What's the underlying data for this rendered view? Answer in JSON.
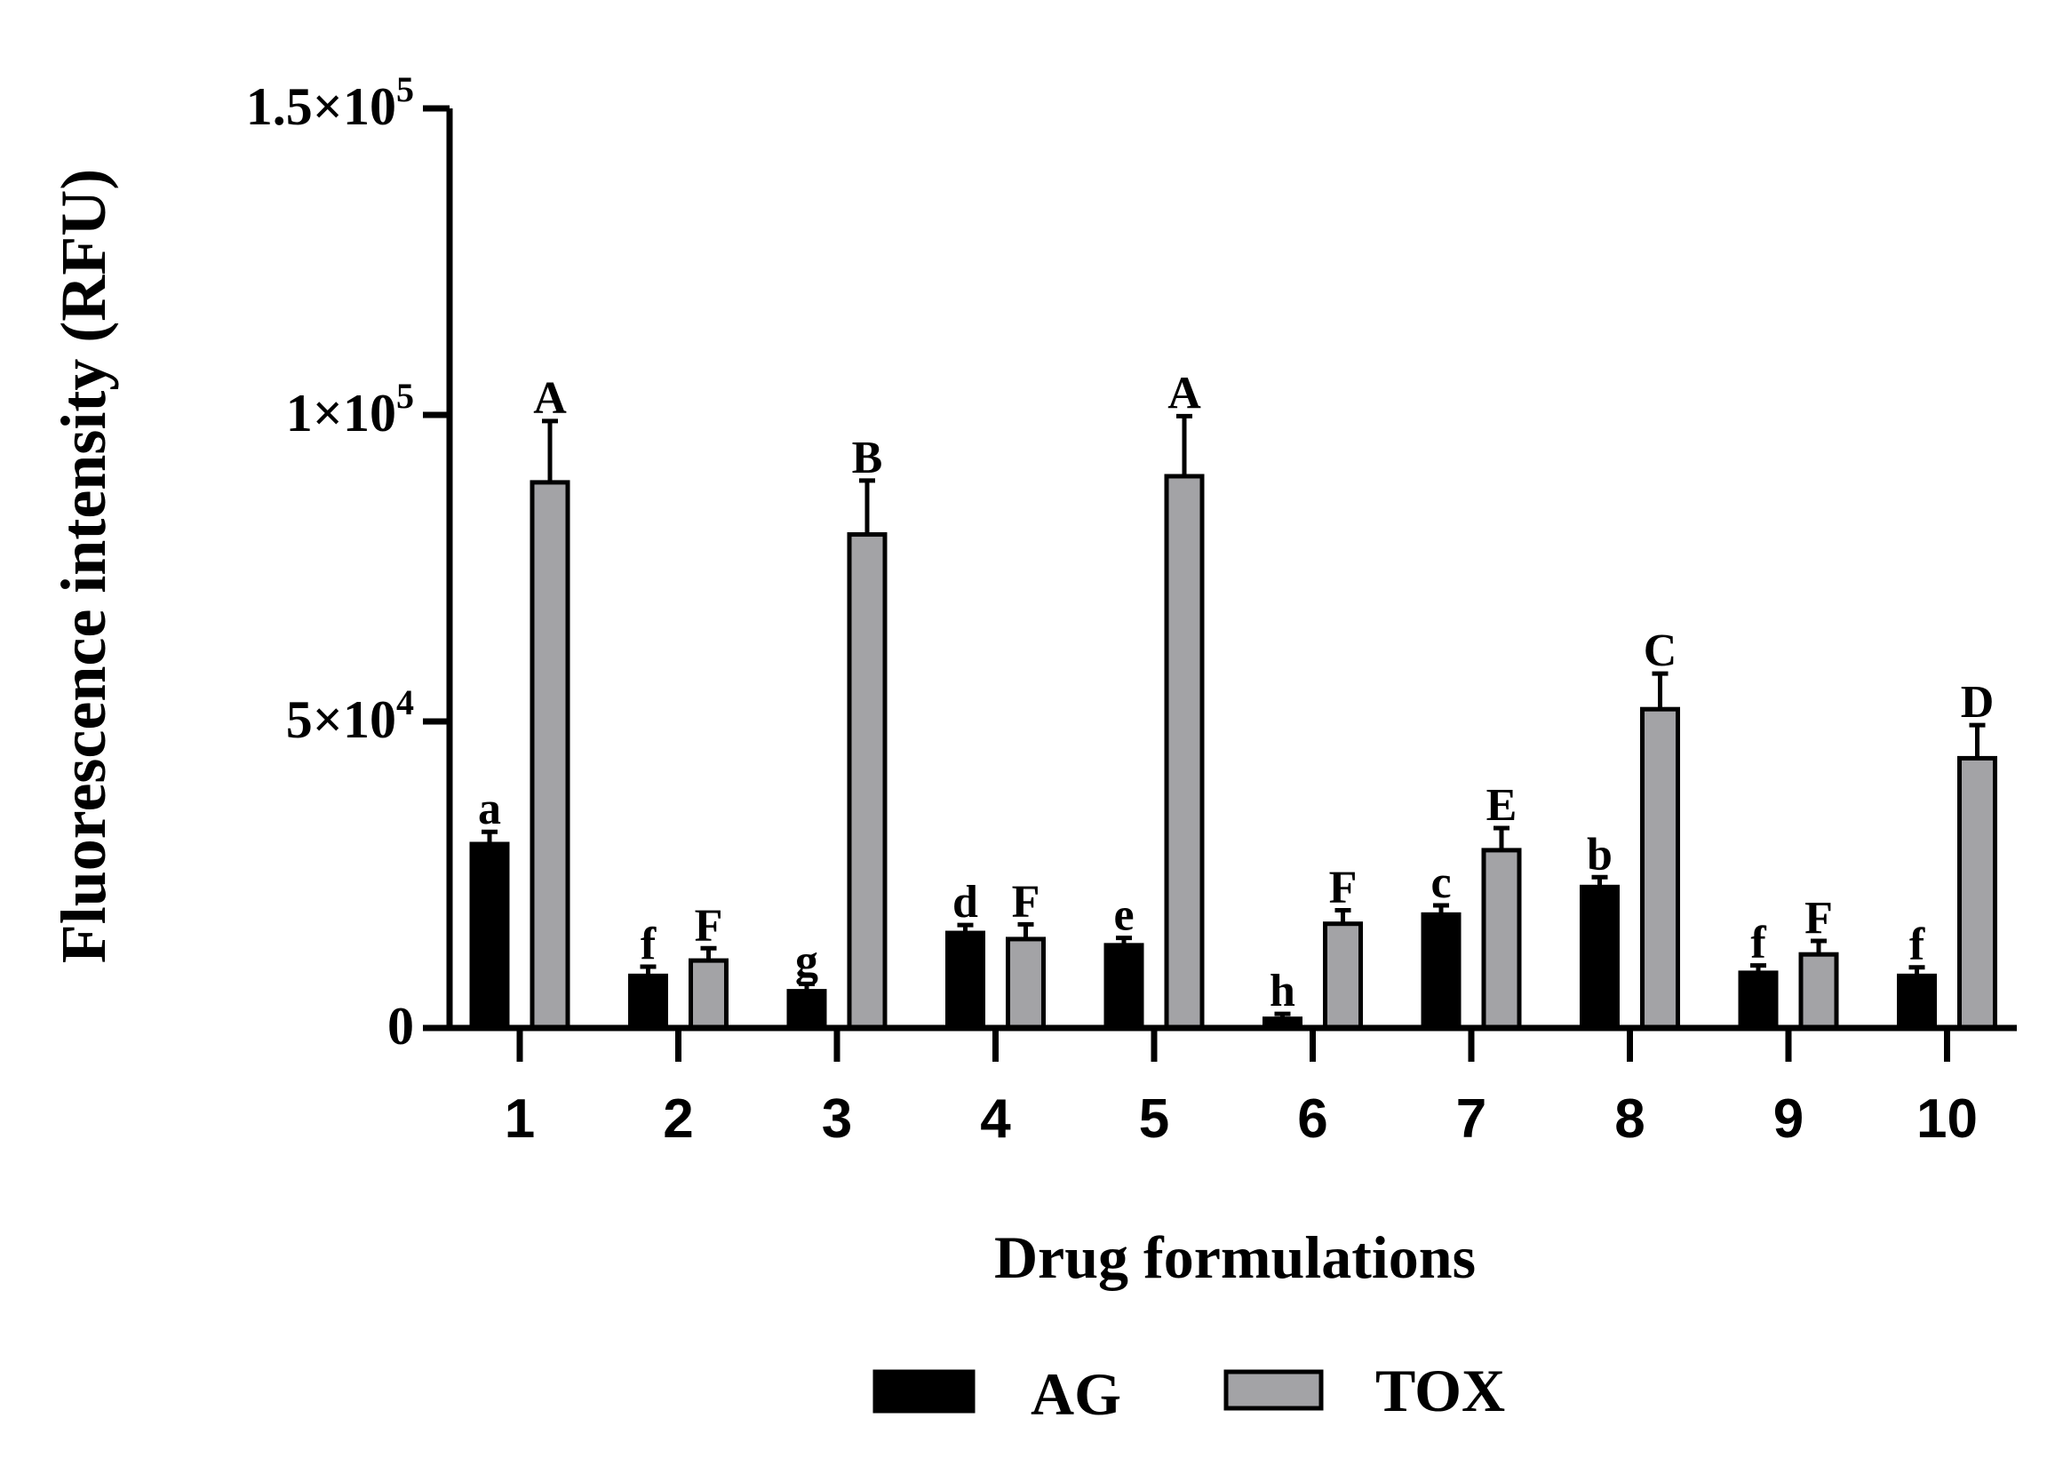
{
  "chart_data": {
    "type": "bar",
    "title": "",
    "xlabel": "Drug formulations",
    "ylabel": "Fluorescence intensity (RFU)",
    "ylim": [
      0,
      150000
    ],
    "yticks": [
      {
        "value": 0,
        "label": "0",
        "exp": ""
      },
      {
        "value": 50000,
        "label": "5×10",
        "exp": "4"
      },
      {
        "value": 100000,
        "label": "1×10",
        "exp": "5"
      },
      {
        "value": 150000,
        "label": "1.5×10",
        "exp": "5"
      }
    ],
    "categories": [
      "1",
      "2",
      "3",
      "4",
      "5",
      "6",
      "7",
      "8",
      "9",
      "10"
    ],
    "legend_position": "bottom",
    "grid": false,
    "series": [
      {
        "name": "AG",
        "color": "#000000",
        "values": [
          30000,
          8500,
          6000,
          15500,
          13500,
          1500,
          18500,
          23000,
          9000,
          8500
        ],
        "errors": [
          2000,
          1500,
          1200,
          1300,
          1200,
          800,
          1500,
          1600,
          1200,
          1400
        ],
        "letters": [
          "a",
          "f",
          "g",
          "d",
          "e",
          "h",
          "c",
          "b",
          "f",
          "f"
        ]
      },
      {
        "name": "TOX",
        "color": "#a3a3a6",
        "values": [
          89000,
          11000,
          80500,
          14500,
          90000,
          17000,
          29000,
          52000,
          12000,
          44000
        ],
        "errors": [
          10000,
          2000,
          8800,
          2400,
          9800,
          2200,
          3600,
          5800,
          2200,
          5400
        ],
        "letters": [
          "A",
          "F",
          "B",
          "F",
          "A",
          "F",
          "E",
          "C",
          "F",
          "D"
        ]
      }
    ]
  }
}
